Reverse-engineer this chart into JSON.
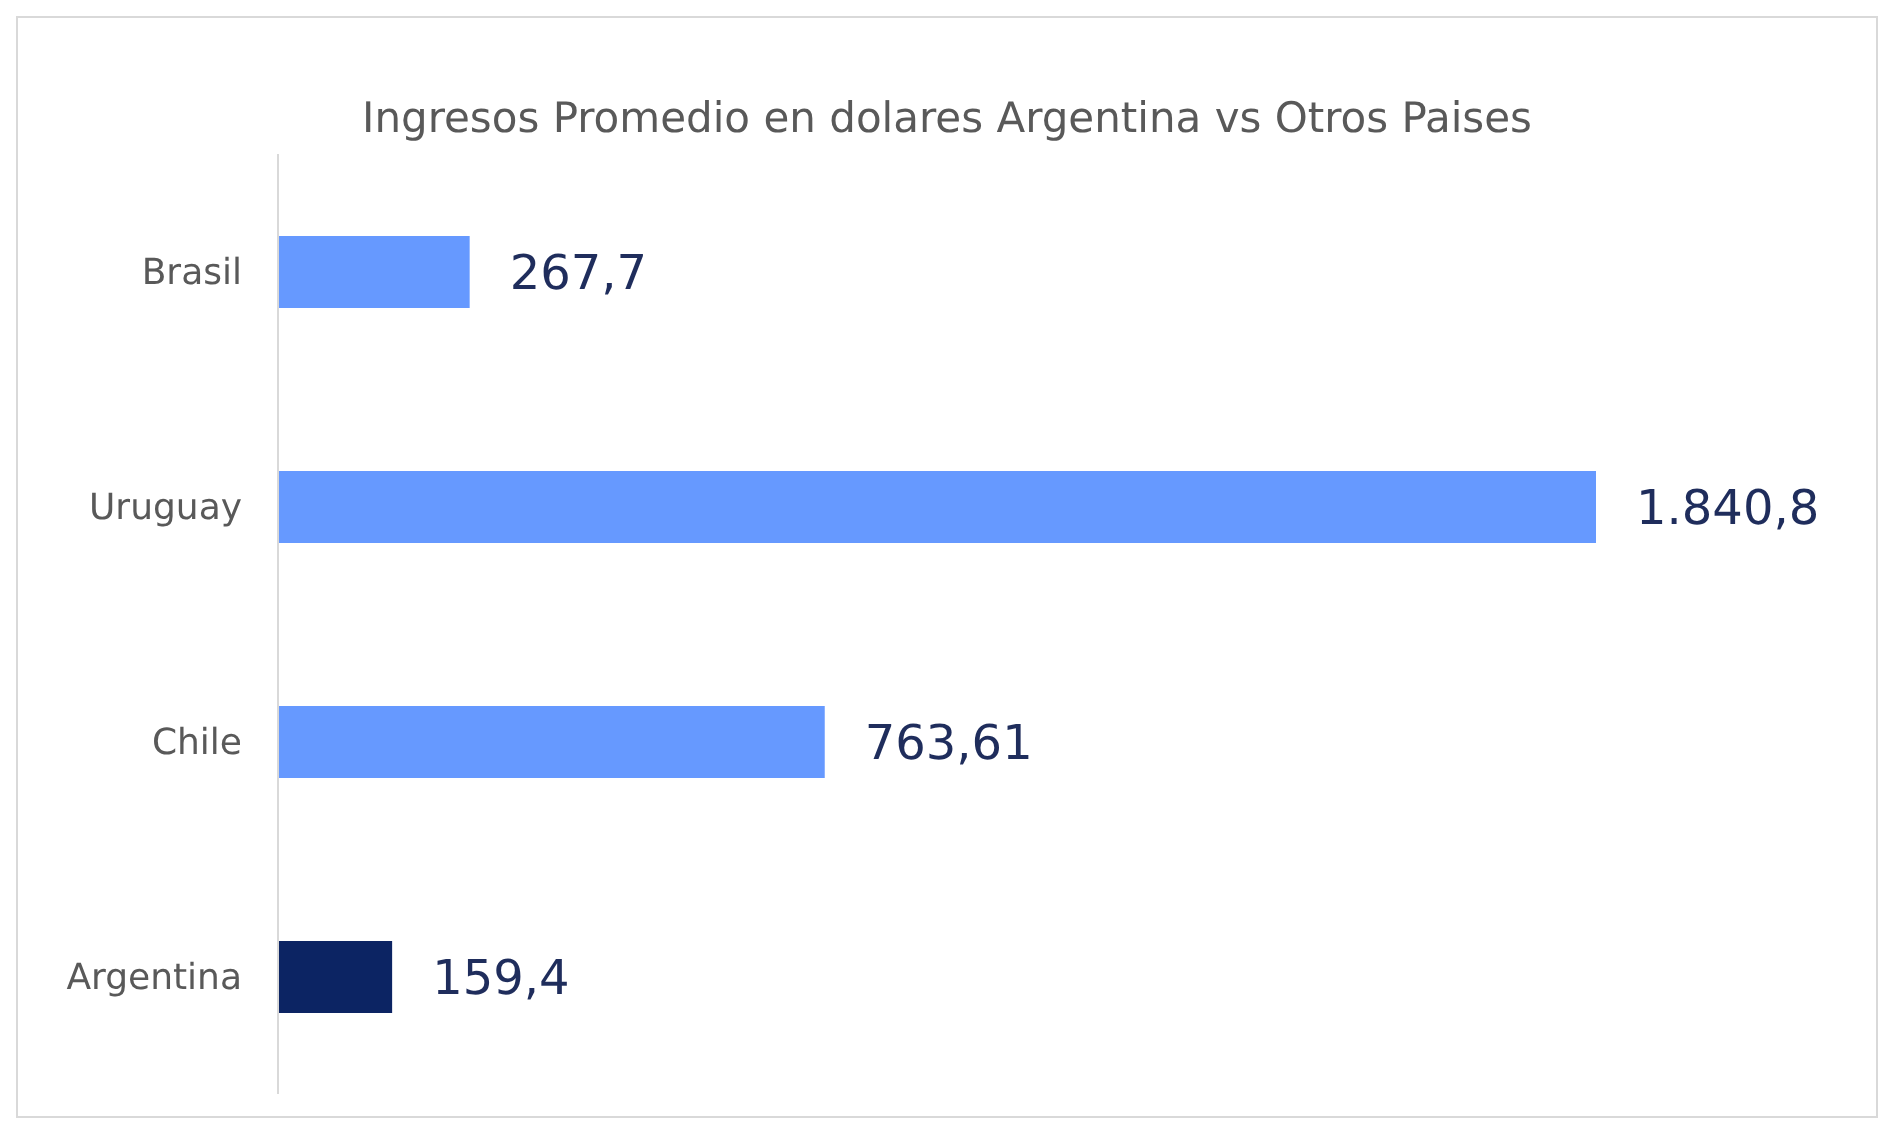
{
  "chart_data": {
    "type": "bar",
    "orientation": "horizontal",
    "title": "Ingresos Promedio en dolares Argentina vs Otros Paises",
    "categories": [
      "Brasil",
      "Uruguay",
      "Chile",
      "Argentina"
    ],
    "values": [
      267.7,
      1840.8,
      763.61,
      159.4
    ],
    "colors": [
      "#6699ff",
      "#6699ff",
      "#6699ff",
      "#0c2463"
    ],
    "value_labels": [
      "267,7",
      "1.840,8",
      "763,61",
      "159,4"
    ],
    "tick_labels": "y",
    "grid": false
  }
}
